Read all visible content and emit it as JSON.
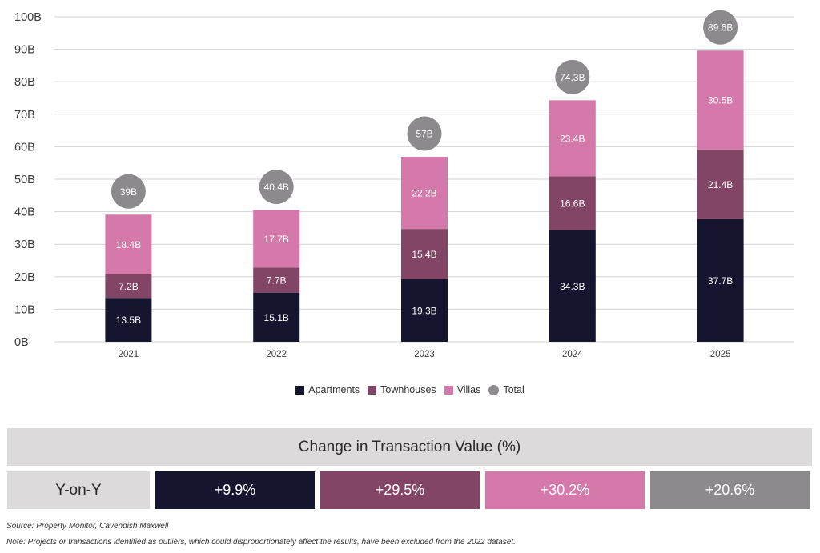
{
  "chart_data": {
    "type": "bar",
    "stacked": true,
    "title": "",
    "xlabel": "",
    "ylabel": "",
    "ylim": [
      0,
      100
    ],
    "y_ticks": [
      "0B",
      "10B",
      "20B",
      "30B",
      "40B",
      "50B",
      "60B",
      "70B",
      "80B",
      "90B",
      "100B"
    ],
    "y_tick_values": [
      0,
      10,
      20,
      30,
      40,
      50,
      60,
      70,
      80,
      90,
      100
    ],
    "grid": true,
    "categories": [
      "2021",
      "2022",
      "2023",
      "2024",
      "2025"
    ],
    "series": [
      {
        "name": "Apartments",
        "color": "#15152f",
        "values": [
          13.5,
          15.1,
          19.3,
          34.3,
          37.7
        ],
        "labels": [
          "13.5B",
          "15.1B",
          "19.3B",
          "34.3B",
          "37.7B"
        ]
      },
      {
        "name": "Townhouses",
        "color": "#834566",
        "values": [
          7.2,
          7.7,
          15.4,
          16.6,
          21.4
        ],
        "labels": [
          "7.2B",
          "7.7B",
          "15.4B",
          "16.6B",
          "21.4B"
        ]
      },
      {
        "name": "Villas",
        "color": "#d479aa",
        "values": [
          18.4,
          17.7,
          22.2,
          23.4,
          30.5
        ],
        "labels": [
          "18.4B",
          "17.7B",
          "22.2B",
          "23.4B",
          "30.5B"
        ]
      }
    ],
    "totals": {
      "name": "Total",
      "color": "#8c8a8c",
      "values": [
        39,
        40.4,
        57,
        74.3,
        89.6
      ],
      "labels": [
        "39B",
        "40.4B",
        "57B",
        "74.3B",
        "89.6B"
      ]
    },
    "legend_position": "bottom-center"
  },
  "legend": [
    {
      "label": "Apartments",
      "color": "#15152f",
      "shape": "square"
    },
    {
      "label": "Townhouses",
      "color": "#834566",
      "shape": "square"
    },
    {
      "label": "Villas",
      "color": "#d479aa",
      "shape": "square"
    },
    {
      "label": "Total",
      "color": "#8c8a8c",
      "shape": "circle"
    }
  ],
  "change_table": {
    "title": "Change in Transaction Value (%)",
    "row_label": "Y-on-Y",
    "cells": [
      {
        "segment": "Apartments",
        "value": "+9.9%",
        "color": "#15152f"
      },
      {
        "segment": "Townhouses",
        "value": "+29.5%",
        "color": "#834566"
      },
      {
        "segment": "Villas",
        "value": "+30.2%",
        "color": "#d479aa"
      },
      {
        "segment": "Total",
        "value": "+20.6%",
        "color": "#8c8a8c"
      }
    ]
  },
  "footer": {
    "source": "Source: Property Monitor, Cavendish Maxwell",
    "note": "Note: Projects or transactions identified as outliers, which could disproportionately affect the results, have been excluded from the 2022 dataset."
  }
}
